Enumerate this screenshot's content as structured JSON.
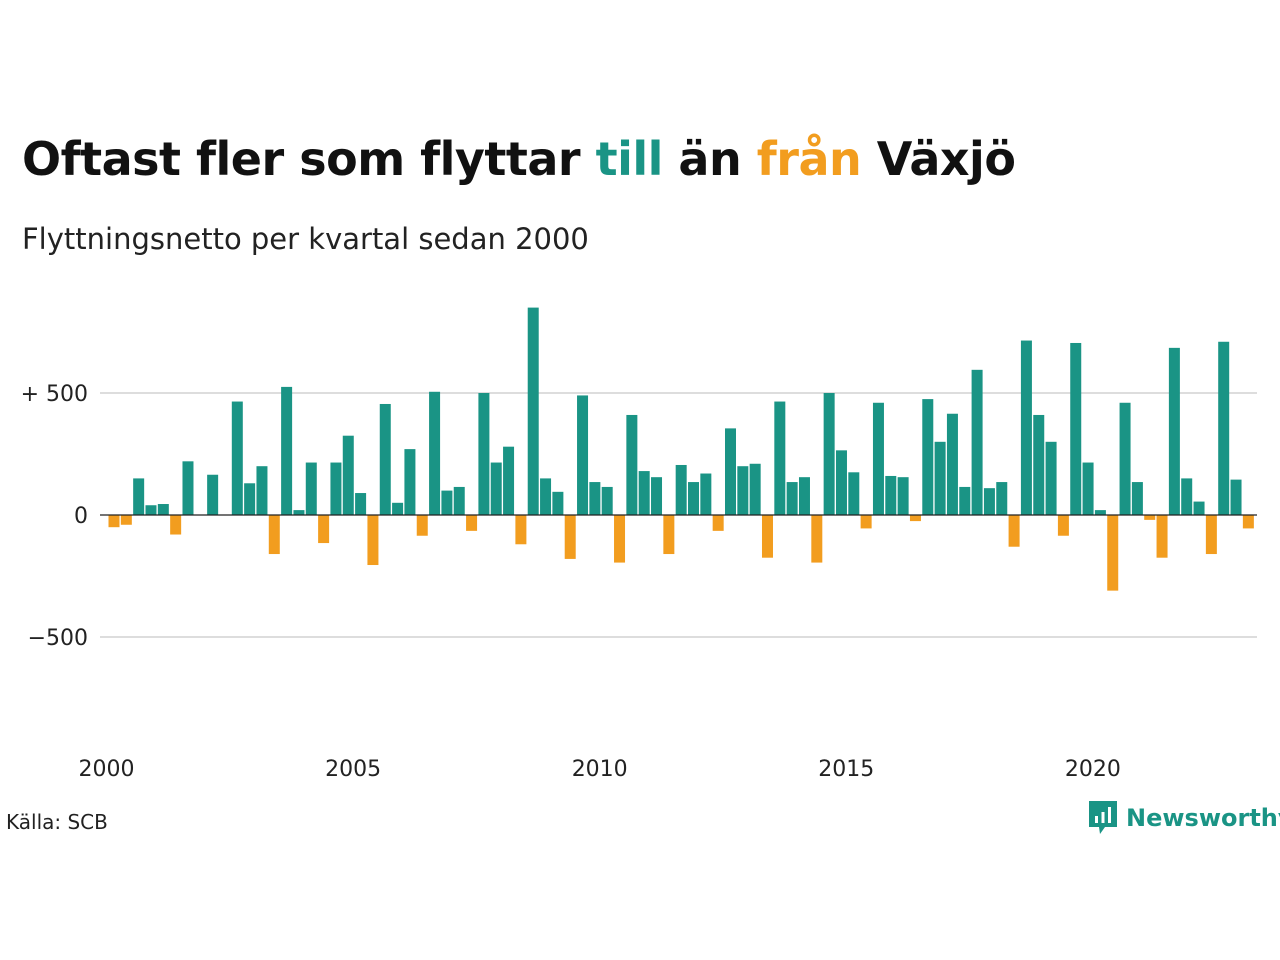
{
  "title": {
    "part1": "Oftast fler som flyttar ",
    "till": "till",
    "part2": " än ",
    "fran": "från",
    "part3": " Växjö"
  },
  "subtitle": "Flyttningsnetto per kvartal sedan 2000",
  "source": "Källa: SCB",
  "brand": "Newsworthy",
  "colors": {
    "positive": "#1a9485",
    "negative": "#f29d1f",
    "grid": "#dddddd"
  },
  "chart_data": {
    "type": "bar",
    "start_year": 2000,
    "quarters_per_year": 4,
    "ylim": [
      -1000,
      900
    ],
    "y_ticks": [
      {
        "value": 500,
        "label": "+ 500"
      },
      {
        "value": 0,
        "label": "0"
      },
      {
        "value": -500,
        "label": "−500"
      }
    ],
    "x_ticks": [
      "2000",
      "2005",
      "2010",
      "2015",
      "2020"
    ],
    "values": [
      -50,
      -40,
      150,
      40,
      45,
      -80,
      220,
      0,
      165,
      0,
      465,
      130,
      200,
      -160,
      525,
      20,
      215,
      -115,
      215,
      325,
      90,
      -205,
      455,
      50,
      270,
      -85,
      505,
      100,
      115,
      -65,
      500,
      215,
      280,
      -120,
      850,
      150,
      95,
      -180,
      490,
      135,
      115,
      -195,
      410,
      180,
      155,
      -160,
      205,
      135,
      170,
      -65,
      355,
      200,
      210,
      -175,
      465,
      135,
      155,
      -195,
      500,
      265,
      175,
      -55,
      460,
      160,
      155,
      -25,
      475,
      300,
      415,
      115,
      595,
      110,
      135,
      -130,
      715,
      410,
      300,
      -85,
      705,
      215,
      20,
      -310,
      460,
      135,
      -20,
      -175,
      685,
      150,
      55,
      -160,
      710,
      145,
      -55
    ]
  }
}
